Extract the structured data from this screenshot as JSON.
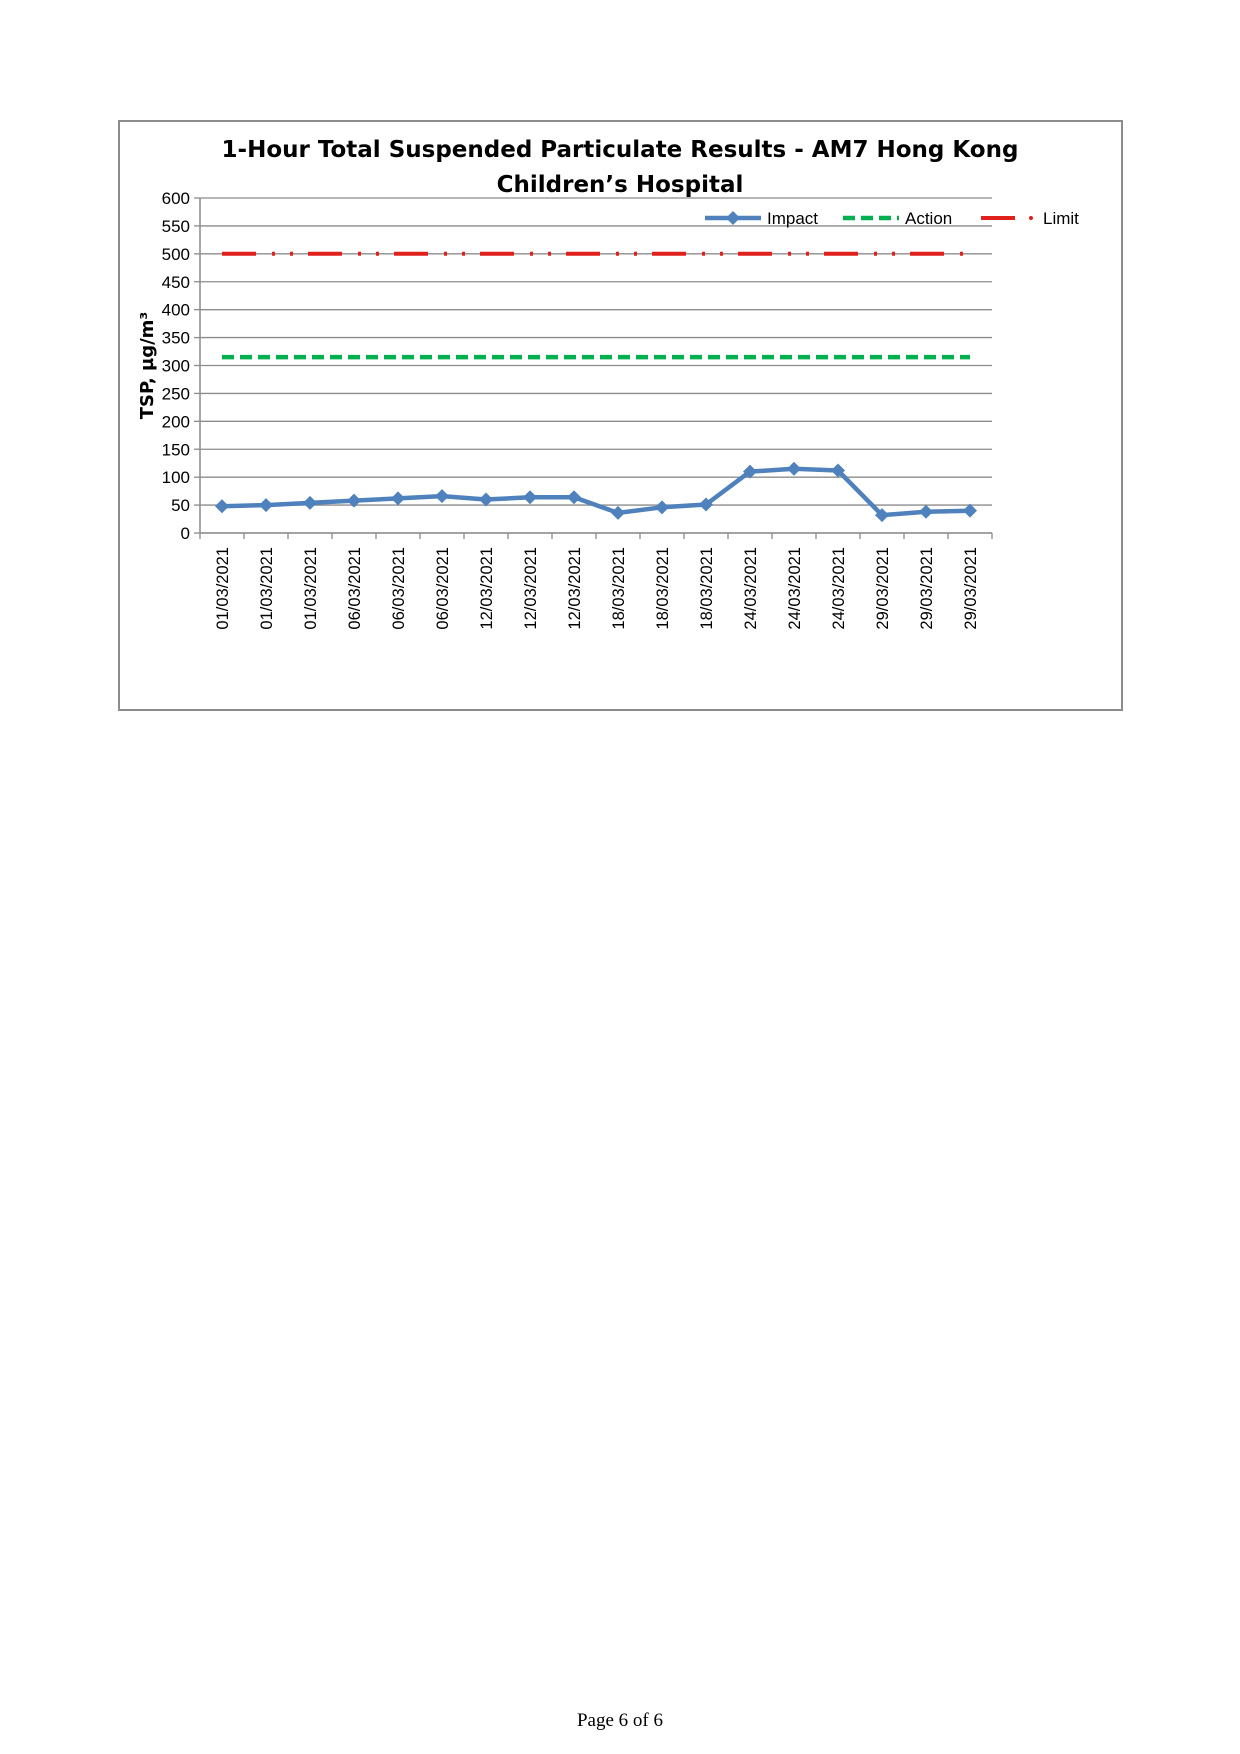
{
  "footer": {
    "page_label": "Page 6 of 6"
  },
  "chart_data": {
    "type": "line",
    "title_lines": [
      "1-Hour Total Suspended Particulate Results - AM7 Hong Kong",
      "Children’s Hospital"
    ],
    "xlabel": "",
    "ylabel": "TSP, µg/m³",
    "ylim": [
      0,
      600
    ],
    "yticks": [
      0,
      50,
      100,
      150,
      200,
      250,
      300,
      350,
      400,
      450,
      500,
      550,
      600
    ],
    "grid": true,
    "legend_position": "top-right",
    "categories": [
      "01/03/2021",
      "01/03/2021",
      "01/03/2021",
      "06/03/2021",
      "06/03/2021",
      "06/03/2021",
      "12/03/2021",
      "12/03/2021",
      "12/03/2021",
      "18/03/2021",
      "18/03/2021",
      "18/03/2021",
      "24/03/2021",
      "24/03/2021",
      "24/03/2021",
      "29/03/2021",
      "29/03/2021",
      "29/03/2021"
    ],
    "series": [
      {
        "name": "Impact",
        "color": "#4f81bd",
        "style": "solid-diamond",
        "values": [
          48,
          50,
          54,
          58,
          62,
          66,
          60,
          64,
          64,
          36,
          46,
          51,
          110,
          115,
          112,
          32,
          38,
          40
        ]
      },
      {
        "name": "Action",
        "color": "#00b050",
        "style": "dashed",
        "values": [
          315,
          315,
          315,
          315,
          315,
          315,
          315,
          315,
          315,
          315,
          315,
          315,
          315,
          315,
          315,
          315,
          315,
          315
        ]
      },
      {
        "name": "Limit",
        "color": "#e0201b",
        "style": "dash-dot",
        "values": [
          500,
          500,
          500,
          500,
          500,
          500,
          500,
          500,
          500,
          500,
          500,
          500,
          500,
          500,
          500,
          500,
          500,
          500
        ]
      }
    ]
  }
}
